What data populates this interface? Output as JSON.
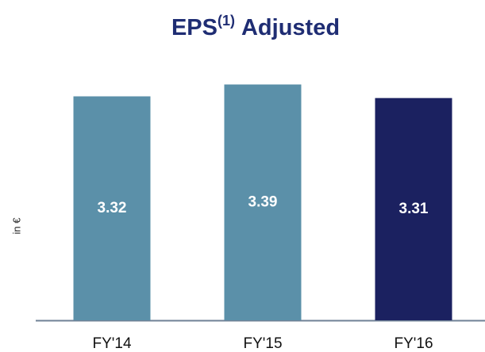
{
  "chart_data": {
    "type": "bar",
    "title": {
      "text": "EPS",
      "superscript": "(1)",
      "suffix": "Adjusted"
    },
    "ylabel": "in €",
    "categories": [
      "FY'14",
      "FY'15",
      "FY'16"
    ],
    "values": [
      3.32,
      3.39,
      3.31
    ],
    "colors": [
      "#5b90a9",
      "#5b90a9",
      "#1b2160"
    ],
    "ylim": [
      2,
      3.5
    ]
  }
}
